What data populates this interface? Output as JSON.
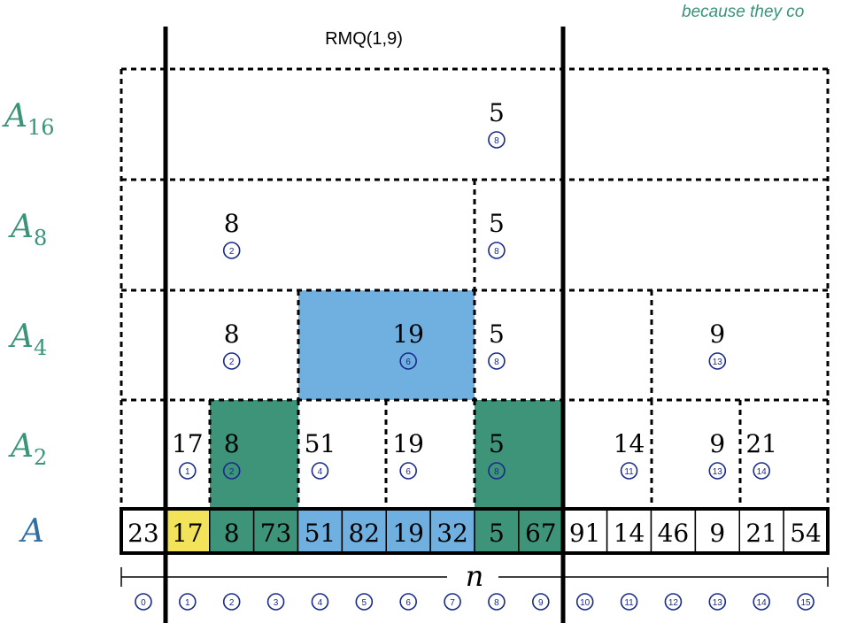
{
  "caption": "because they co",
  "query_label": "RMQ(1,9)",
  "length_label": "n",
  "colors": {
    "green_text": "#3a9478",
    "blue_text": "#2f6fa3",
    "yellow": "#f2e35a",
    "green": "#3d9478",
    "blue": "#6fb0e0",
    "index_circle": "#1a2a8a",
    "line": "#000000"
  },
  "row_labels": {
    "A16": {
      "base": "A",
      "sub": "16"
    },
    "A8": {
      "base": "A",
      "sub": "8"
    },
    "A4": {
      "base": "A",
      "sub": "4"
    },
    "A2": {
      "base": "A",
      "sub": "2"
    },
    "A": {
      "base": "A",
      "sub": ""
    }
  },
  "array": [
    "23",
    "17",
    "8",
    "73",
    "51",
    "82",
    "19",
    "32",
    "5",
    "67",
    "91",
    "14",
    "46",
    "9",
    "21",
    "54"
  ],
  "array_highlight": [
    "none",
    "yellow",
    "green",
    "green",
    "blue",
    "blue",
    "blue",
    "blue",
    "green",
    "green",
    "none",
    "none",
    "none",
    "none",
    "none",
    "none"
  ],
  "indices": [
    "0",
    "1",
    "2",
    "3",
    "4",
    "5",
    "6",
    "7",
    "8",
    "9",
    "10",
    "11",
    "12",
    "13",
    "14",
    "15"
  ],
  "levels": {
    "A16": [
      {
        "value": "5",
        "index": "8"
      }
    ],
    "A8": [
      {
        "value": "8",
        "index": "2"
      },
      {
        "value": "5",
        "index": "8"
      }
    ],
    "A4": [
      {
        "value": "8",
        "index": "2"
      },
      {
        "value": "19",
        "index": "6"
      },
      {
        "value": "5",
        "index": "8"
      },
      {
        "value": "9",
        "index": "13"
      }
    ],
    "A2": [
      {
        "value": "17",
        "index": "1"
      },
      {
        "value": "8",
        "index": "2"
      },
      {
        "value": "51",
        "index": "4"
      },
      {
        "value": "19",
        "index": "6"
      },
      {
        "value": "5",
        "index": "8"
      },
      {
        "value": "14",
        "index": "11"
      },
      {
        "value": "9",
        "index": "13"
      },
      {
        "value": "21",
        "index": "14"
      }
    ]
  }
}
